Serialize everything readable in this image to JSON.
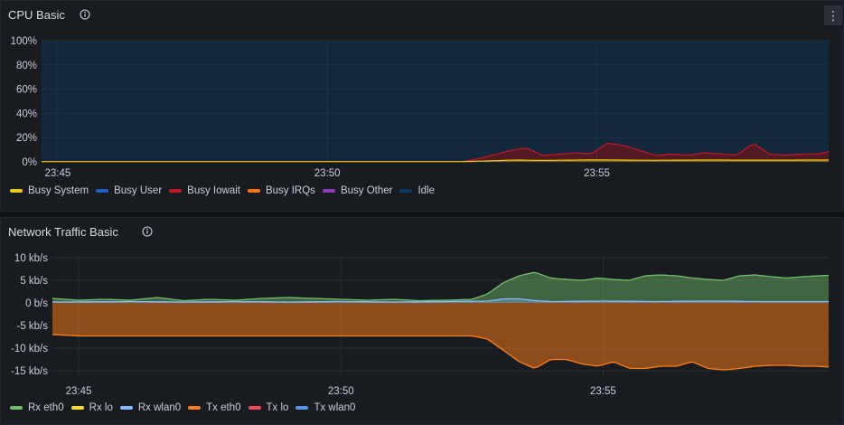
{
  "cpu_panel": {
    "title": "CPU Basic",
    "legend": [
      {
        "label": "Busy System",
        "color": "#f2cc0c"
      },
      {
        "label": "Busy User",
        "color": "#1f60c4"
      },
      {
        "label": "Busy Iowait",
        "color": "#c4162a"
      },
      {
        "label": "Busy IRQs",
        "color": "#ff780a"
      },
      {
        "label": "Busy Other",
        "color": "#8f3bb8"
      },
      {
        "label": "Idle",
        "color": "#0e3a5e"
      }
    ]
  },
  "network_panel": {
    "title": "Network Traffic Basic",
    "legend": [
      {
        "label": "Rx eth0",
        "color": "#73bf69"
      },
      {
        "label": "Rx lo",
        "color": "#fade2a"
      },
      {
        "label": "Rx wlan0",
        "color": "#8ab8ff"
      },
      {
        "label": "Tx eth0",
        "color": "#ff7d1a"
      },
      {
        "label": "Tx lo",
        "color": "#f2495c"
      },
      {
        "label": "Tx wlan0",
        "color": "#5794f2"
      }
    ]
  },
  "chart_data": [
    {
      "type": "area",
      "title": "CPU Basic",
      "y_ticks": [
        "0%",
        "20%",
        "40%",
        "60%",
        "80%",
        "100%"
      ],
      "ylim": [
        0,
        100
      ],
      "x_ticks": [
        "23:45",
        "23:50",
        "23:55"
      ],
      "x_tick_minutes": [
        0,
        5,
        10
      ],
      "xlim_minutes": [
        -0.3,
        14.3
      ],
      "stacked": true,
      "series": [
        {
          "name": "Busy System",
          "color": "#f2cc0c",
          "x": [
            -0.3,
            7.5,
            8.0,
            8.5,
            9.0,
            10.0,
            11.0,
            12.0,
            13.0,
            14.3
          ],
          "y": [
            0.2,
            0.2,
            0.8,
            1.5,
            1.2,
            1.6,
            1.3,
            1.5,
            1.4,
            1.5
          ]
        },
        {
          "name": "Busy Iowait",
          "color": "#c4162a",
          "x": [
            -0.3,
            7.5,
            7.8,
            8.1,
            8.4,
            8.7,
            9.0,
            9.3,
            9.6,
            9.9,
            10.2,
            10.5,
            10.8,
            11.1,
            11.4,
            11.7,
            12.0,
            12.3,
            12.6,
            12.9,
            13.2,
            13.5,
            13.8,
            14.1,
            14.3
          ],
          "y": [
            0,
            0,
            2,
            5,
            8,
            10,
            4,
            5,
            6,
            5,
            14,
            12,
            8,
            4,
            5,
            4,
            6,
            5,
            4,
            14,
            5,
            4,
            5,
            5,
            7
          ]
        },
        {
          "name": "Idle",
          "color": "#0e3a5e",
          "x": [
            -0.3,
            14.3
          ],
          "y": [
            100,
            100
          ]
        }
      ]
    },
    {
      "type": "area",
      "title": "Network Traffic Basic",
      "y_ticks": [
        "10 kb/s",
        "5 kb/s",
        "0 b/s",
        "-5 kb/s",
        "-10 kb/s",
        "-15 kb/s"
      ],
      "y_tick_values": [
        10,
        5,
        0,
        -5,
        -10,
        -15
      ],
      "ylim": [
        -15.5,
        10
      ],
      "x_ticks": [
        "23:45",
        "23:50",
        "23:55"
      ],
      "x_tick_minutes": [
        0,
        5,
        10
      ],
      "xlim_minutes": [
        -0.5,
        14.3
      ],
      "series": [
        {
          "name": "Rx eth0",
          "color": "#73bf69",
          "x": [
            -0.5,
            0,
            0.5,
            1,
            1.5,
            2,
            2.5,
            3,
            3.5,
            4,
            4.5,
            5,
            5.5,
            6,
            6.5,
            7,
            7.5,
            7.8,
            8.1,
            8.4,
            8.7,
            9,
            9.3,
            9.6,
            9.9,
            10.2,
            10.5,
            10.8,
            11.1,
            11.4,
            11.7,
            12,
            12.3,
            12.6,
            12.9,
            13.2,
            13.5,
            13.8,
            14.1,
            14.3
          ],
          "y": [
            1,
            0.6,
            0.8,
            0.6,
            1.2,
            0.5,
            0.8,
            0.6,
            1.0,
            1.2,
            1.0,
            0.8,
            0.6,
            0.8,
            0.5,
            0.6,
            0.8,
            2.0,
            4.5,
            6.0,
            6.8,
            5.5,
            5.2,
            5.0,
            5.5,
            5.2,
            5.0,
            6.0,
            6.2,
            6.0,
            5.5,
            5.2,
            5.0,
            6.0,
            6.2,
            5.8,
            5.5,
            5.8,
            6.0,
            6.1
          ]
        },
        {
          "name": "Rx wlan0",
          "color": "#8ab8ff",
          "x": [
            -0.5,
            1,
            2,
            3,
            4,
            5,
            6,
            7,
            7.8,
            8.1,
            8.4,
            8.7,
            9,
            10,
            11,
            12,
            13,
            14.3
          ],
          "y": [
            0.2,
            0.3,
            0.2,
            0.3,
            0.2,
            0.3,
            0.2,
            0.3,
            0.4,
            0.9,
            0.9,
            0.5,
            0.3,
            0.4,
            0.3,
            0.4,
            0.3,
            0.3
          ]
        },
        {
          "name": "Tx eth0",
          "color": "#ff7d1a",
          "x": [
            -0.5,
            0,
            7,
            7.5,
            7.8,
            8.1,
            8.4,
            8.7,
            9.0,
            9.3,
            9.6,
            9.9,
            10.2,
            10.5,
            10.8,
            11.1,
            11.4,
            11.7,
            12.0,
            12.3,
            12.6,
            12.9,
            13.2,
            13.5,
            13.8,
            14.1,
            14.3
          ],
          "y": [
            -7,
            -7.3,
            -7.3,
            -7.3,
            -8,
            -10.5,
            -13,
            -14.5,
            -12.5,
            -12.5,
            -13.5,
            -14,
            -13,
            -14.5,
            -14.5,
            -14,
            -14,
            -13,
            -14.5,
            -14.8,
            -14.5,
            -14,
            -13.8,
            -13.8,
            -14,
            -14,
            -14.2
          ]
        }
      ]
    }
  ]
}
